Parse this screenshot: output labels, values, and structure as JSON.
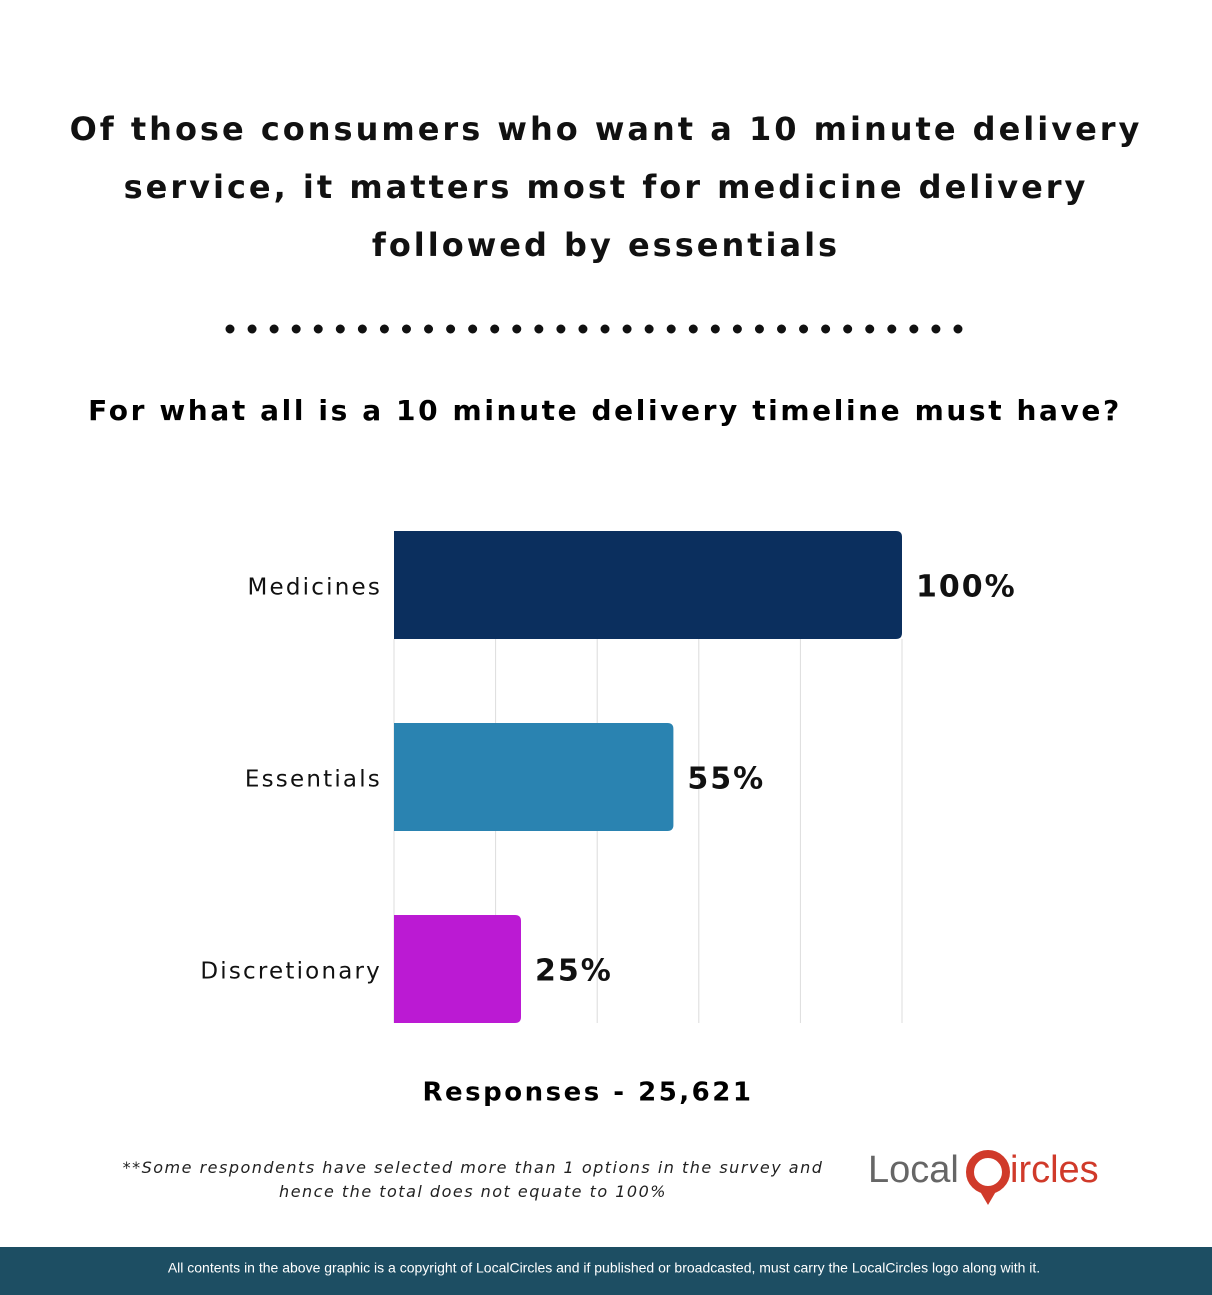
{
  "chart_data": {
    "type": "bar",
    "orientation": "horizontal",
    "title": "Of those consumers who want a 10 minute delivery service, it matters most for medicine delivery followed by essentials",
    "subtitle": "For what all is a 10 minute delivery timeline must have?",
    "categories": [
      "Medicines",
      "Essentials",
      "Discretionary"
    ],
    "values": [
      100,
      55,
      25
    ],
    "value_labels": [
      "100%",
      "55%",
      "25%"
    ],
    "colors": [
      "#0b2f5e",
      "#2a83b1",
      "#bb1ad3"
    ],
    "xlim": [
      0,
      100
    ],
    "xticks": [
      0,
      20,
      40,
      60,
      80,
      100
    ],
    "grid": true,
    "responses": "Responses - 25,621",
    "footnote": "**Some respondents have selected more than 1 options in the survey and hence the total does not equate to 100%"
  },
  "logo": {
    "left": "Local",
    "right": "ircles"
  },
  "footer": "All contents in the above graphic is a copyright of LocalCircles and if published or broadcasted, must carry the LocalCircles logo along with it."
}
